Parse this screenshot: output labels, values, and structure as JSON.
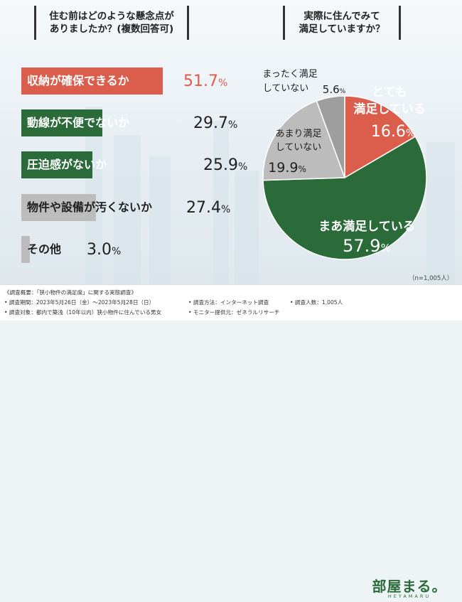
{
  "left_question": {
    "line1": "住む前はどのような懸念点が",
    "line2": "ありましたか？(複数回答可)"
  },
  "right_question": {
    "line1": "実際に住んでみて",
    "line2": "満足していますか？"
  },
  "colors": {
    "red": "#db5e4d",
    "green": "#2b6b3a",
    "gray": "#bcbcbc",
    "light_gray": "#9e9e9e",
    "text_dark": "#1f1f1f"
  },
  "chart_data": [
    {
      "type": "bar",
      "orientation": "horizontal",
      "title": "住む前はどのような懸念点がありましたか？(複数回答可)",
      "categories": [
        "収納が確保できるか",
        "動線が不便でないか",
        "圧迫感がないか",
        "物件や設備が汚くないか",
        "その他"
      ],
      "values": [
        51.7,
        29.7,
        25.9,
        27.4,
        3.0
      ],
      "value_labels": [
        "51.7",
        "29.7",
        "25.9",
        "27.4",
        "3.0"
      ],
      "unit": "%",
      "bar_colors": [
        "#db5e4d",
        "#2b6b3a",
        "#2b6b3a",
        "#bcbcbc",
        "#bcbcbc"
      ],
      "label_colors": [
        "#ffffff",
        "#ffffff",
        "#ffffff",
        "#1f1f1f",
        "#1f1f1f"
      ]
    },
    {
      "type": "pie",
      "title": "実際に住んでみて満足していますか？",
      "slices": [
        {
          "label_l1": "とても",
          "label_l2": "満足している",
          "value": 16.6,
          "value_label": "16.6",
          "color": "#db5e4d"
        },
        {
          "label_l1": "まあ満足している",
          "label_l2": "",
          "value": 57.9,
          "value_label": "57.9",
          "color": "#2b6b3a"
        },
        {
          "label_l1": "あまり満足",
          "label_l2": "していない",
          "value": 19.9,
          "value_label": "19.9",
          "color": "#bcbcbc"
        },
        {
          "label_l1": "まったく満足",
          "label_l2": "していない",
          "value": 5.6,
          "value_label": "5.6",
          "color": "#9e9e9e"
        }
      ],
      "unit": "%",
      "n_note": "（n=1,005人）"
    }
  ],
  "footer": {
    "summary": "《調査概要：「狭小物件の満足度」に関する実態調査》",
    "period": "• 調査期間：2023年5月26日（金）～2023年5月28日（日）",
    "target": "• 調査対象：都内で築浅（10年以内）狭小物件に住んでいる男女",
    "method": "• 調査方法：インターネット調査",
    "provider": "• モニター提供元：ゼネラルリサーチ",
    "count": "• 調査人数：1,005人"
  },
  "logo": {
    "text": "部屋まる。",
    "sub": "HEYAMARU"
  }
}
